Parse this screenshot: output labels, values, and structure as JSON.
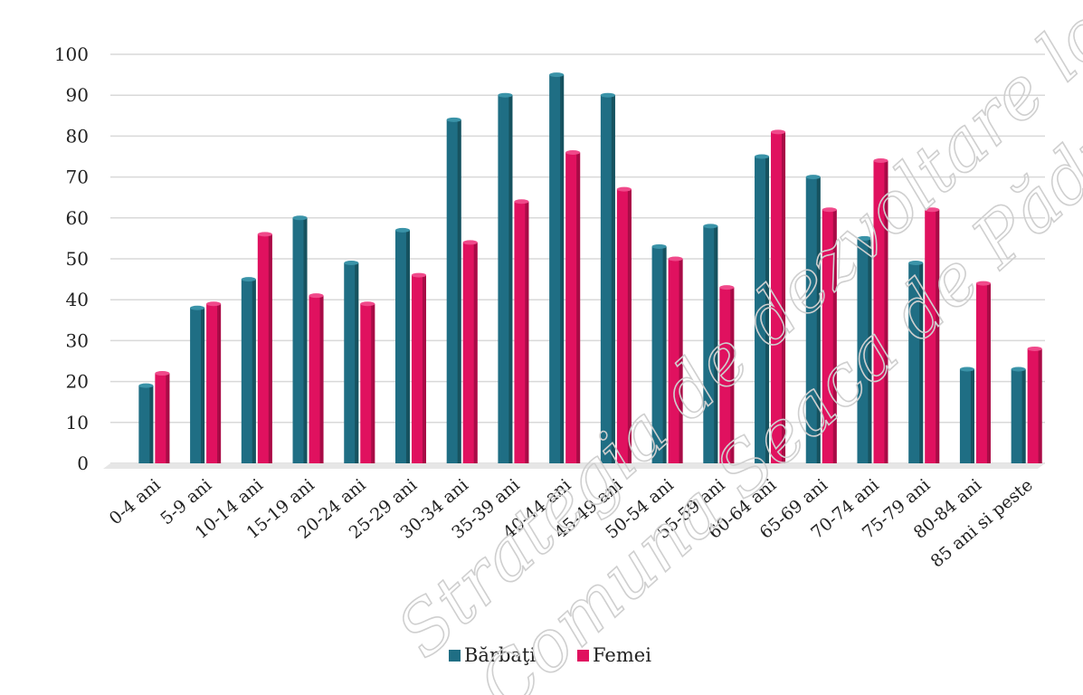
{
  "chart_data": {
    "type": "bar",
    "title": "",
    "xlabel": "",
    "ylabel": "",
    "ylim": [
      0,
      100
    ],
    "yticks": [
      0,
      10,
      20,
      30,
      40,
      50,
      60,
      70,
      80,
      90,
      100
    ],
    "grid": true,
    "legend_position": "bottom-center",
    "categories": [
      "0-4 ani",
      "5-9 ani",
      "10-14 ani",
      "15-19 ani",
      "20-24 ani",
      "25-29 ani",
      "30-34 ani",
      "35-39 ani",
      "40-44 ani",
      "45-49 ani",
      "50-54 ani",
      "55-59 ani",
      "60-64 ani",
      "65-69 ani",
      "70-74 ani",
      "75-79 ani",
      "80-84 ani",
      "85 ani si peste"
    ],
    "series": [
      {
        "name": "Bărbaţi",
        "color": "#1f6e84",
        "values": [
          19,
          38,
          45,
          60,
          49,
          57,
          84,
          90,
          95,
          90,
          53,
          58,
          75,
          70,
          55,
          49,
          23,
          23
        ]
      },
      {
        "name": "Femei",
        "color": "#e0115f",
        "values": [
          22,
          39,
          56,
          41,
          39,
          46,
          54,
          64,
          76,
          67,
          50,
          43,
          81,
          62,
          74,
          62,
          44,
          28
        ]
      }
    ]
  },
  "watermark": {
    "line1": "Strategia de dezvoltare locală",
    "line2": "Comuna Seaca de Pădure și Izvoarele"
  }
}
